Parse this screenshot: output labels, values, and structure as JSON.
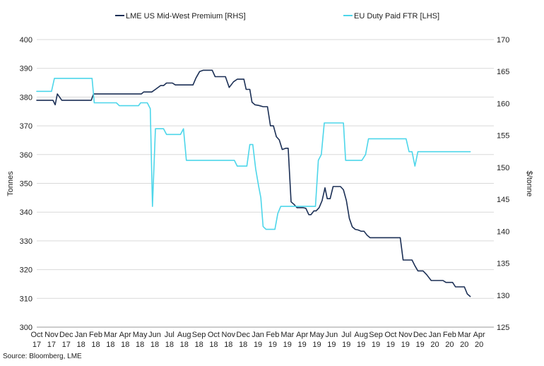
{
  "chart_data": {
    "type": "line",
    "legend": [
      {
        "name": "LME US Mid-West Premium [RHS]",
        "color": "#1b2f55",
        "axis": "right"
      },
      {
        "name": "EU Duty Paid FTR [LHS]",
        "color": "#4dd6ea",
        "axis": "left"
      }
    ],
    "legend_placement": "top",
    "left_axis": {
      "label": "Tonnes",
      "range": [
        300,
        400
      ],
      "ticks": [
        "300",
        "310",
        "320",
        "330",
        "340",
        "350",
        "360",
        "370",
        "380",
        "390",
        "400"
      ]
    },
    "right_axis": {
      "label": "$/tonne",
      "range": [
        125,
        170
      ],
      "ticks": [
        "125",
        "130",
        "135",
        "140",
        "145",
        "150",
        "155",
        "160",
        "165",
        "170"
      ]
    },
    "x_axis": {
      "range": [
        0,
        31
      ],
      "ticks": [
        {
          "month": "Oct",
          "year": "17"
        },
        {
          "month": "Nov",
          "year": "17"
        },
        {
          "month": "Dec",
          "year": "17"
        },
        {
          "month": "Jan",
          "year": "18"
        },
        {
          "month": "Feb",
          "year": "18"
        },
        {
          "month": "Mar",
          "year": "18"
        },
        {
          "month": "Apr",
          "year": "18"
        },
        {
          "month": "May",
          "year": "18"
        },
        {
          "month": "Jun",
          "year": "18"
        },
        {
          "month": "Jul",
          "year": "18"
        },
        {
          "month": "Aug",
          "year": "18"
        },
        {
          "month": "Sep",
          "year": "18"
        },
        {
          "month": "Oct",
          "year": "18"
        },
        {
          "month": "Nov",
          "year": "18"
        },
        {
          "month": "Dec",
          "year": "18"
        },
        {
          "month": "Jan",
          "year": "19"
        },
        {
          "month": "Feb",
          "year": "19"
        },
        {
          "month": "Mar",
          "year": "19"
        },
        {
          "month": "Apr",
          "year": "19"
        },
        {
          "month": "May",
          "year": "19"
        },
        {
          "month": "Jun",
          "year": "19"
        },
        {
          "month": "Jul",
          "year": "19"
        },
        {
          "month": "Aug",
          "year": "19"
        },
        {
          "month": "Sep",
          "year": "19"
        },
        {
          "month": "Oct",
          "year": "19"
        },
        {
          "month": "Nov",
          "year": "19"
        },
        {
          "month": "Dec",
          "year": "19"
        },
        {
          "month": "Jan",
          "year": "20"
        },
        {
          "month": "Feb",
          "year": "20"
        },
        {
          "month": "Mar",
          "year": "20"
        },
        {
          "month": "Apr",
          "year": "20"
        }
      ]
    },
    "grid": "horizontal",
    "series": [
      {
        "name": "LME US Mid-West Premium [RHS]",
        "axis": "right",
        "color": "#1b2f55",
        "points": [
          [
            0,
            160.5
          ],
          [
            1.1,
            160.5
          ],
          [
            1.25,
            159.8
          ],
          [
            1.4,
            161.5
          ],
          [
            1.7,
            160.5
          ],
          [
            3.7,
            160.5
          ],
          [
            3.85,
            161.5
          ],
          [
            7.1,
            161.5
          ],
          [
            7.25,
            161.8
          ],
          [
            7.8,
            161.8
          ],
          [
            8.05,
            162.2
          ],
          [
            8.4,
            162.8
          ],
          [
            8.6,
            162.8
          ],
          [
            8.8,
            163.2
          ],
          [
            9.2,
            163.2
          ],
          [
            9.4,
            162.9
          ],
          [
            10.6,
            162.9
          ],
          [
            10.8,
            164
          ],
          [
            11.05,
            165
          ],
          [
            11.3,
            165.2
          ],
          [
            11.9,
            165.2
          ],
          [
            12.1,
            164.2
          ],
          [
            12.8,
            164.2
          ],
          [
            13.05,
            162.5
          ],
          [
            13.35,
            163.4
          ],
          [
            13.6,
            163.8
          ],
          [
            14.05,
            163.8
          ],
          [
            14.2,
            162.2
          ],
          [
            14.45,
            162.2
          ],
          [
            14.6,
            160.2
          ],
          [
            14.8,
            159.8
          ],
          [
            15.05,
            159.7
          ],
          [
            15.35,
            159.5
          ],
          [
            15.65,
            159.5
          ],
          [
            15.85,
            156.5
          ],
          [
            16.05,
            156.5
          ],
          [
            16.25,
            154.8
          ],
          [
            16.45,
            154.3
          ],
          [
            16.65,
            152.8
          ],
          [
            16.9,
            153.0
          ],
          [
            17.05,
            153.0
          ],
          [
            17.25,
            144.6
          ],
          [
            17.45,
            144.2
          ],
          [
            17.65,
            143.7
          ],
          [
            18.05,
            143.7
          ],
          [
            18.25,
            143.6
          ],
          [
            18.45,
            142.6
          ],
          [
            18.6,
            142.6
          ],
          [
            18.8,
            143.2
          ],
          [
            18.95,
            143.2
          ],
          [
            19.15,
            143.7
          ],
          [
            19.35,
            144.8
          ],
          [
            19.55,
            146.8
          ],
          [
            19.7,
            145.1
          ],
          [
            19.9,
            145.1
          ],
          [
            20.1,
            147
          ],
          [
            20.6,
            147
          ],
          [
            20.8,
            146.5
          ],
          [
            21.0,
            144.8
          ],
          [
            21.2,
            142.0
          ],
          [
            21.4,
            140.7
          ],
          [
            21.6,
            140.3
          ],
          [
            21.8,
            140.2
          ],
          [
            22.0,
            140
          ],
          [
            22.2,
            140
          ],
          [
            22.4,
            139.4
          ],
          [
            22.6,
            139.0
          ],
          [
            24.65,
            139.0
          ],
          [
            24.85,
            135.5
          ],
          [
            25.45,
            135.5
          ],
          [
            25.65,
            134.6
          ],
          [
            25.85,
            133.8
          ],
          [
            26.2,
            133.8
          ],
          [
            26.45,
            133.2
          ],
          [
            26.75,
            132.3
          ],
          [
            27.55,
            132.3
          ],
          [
            27.75,
            132.0
          ],
          [
            28.2,
            132.0
          ],
          [
            28.4,
            131.3
          ],
          [
            29.0,
            131.3
          ],
          [
            29.2,
            130.2
          ],
          [
            29.4,
            129.8
          ]
        ]
      },
      {
        "name": "EU Duty Paid FTR [LHS]",
        "axis": "left",
        "color": "#4dd6ea",
        "points": [
          [
            0,
            382
          ],
          [
            1.0,
            382
          ],
          [
            1.2,
            386.5
          ],
          [
            3.75,
            386.5
          ],
          [
            3.9,
            378
          ],
          [
            5.4,
            378
          ],
          [
            5.6,
            377
          ],
          [
            6.9,
            377
          ],
          [
            7.05,
            378
          ],
          [
            7.5,
            378
          ],
          [
            7.7,
            376
          ],
          [
            7.85,
            342
          ],
          [
            8.05,
            369
          ],
          [
            8.6,
            369
          ],
          [
            8.8,
            367
          ],
          [
            9.75,
            367
          ],
          [
            9.95,
            369
          ],
          [
            10.15,
            358
          ],
          [
            13.4,
            358
          ],
          [
            13.6,
            356
          ],
          [
            14.25,
            356
          ],
          [
            14.45,
            363.5
          ],
          [
            14.65,
            363.5
          ],
          [
            14.85,
            355
          ],
          [
            15.05,
            349
          ],
          [
            15.2,
            345
          ],
          [
            15.35,
            335
          ],
          [
            15.55,
            334
          ],
          [
            16.15,
            334
          ],
          [
            16.35,
            339.5
          ],
          [
            16.55,
            342
          ],
          [
            18.9,
            342
          ],
          [
            19.1,
            358
          ],
          [
            19.3,
            360
          ],
          [
            19.5,
            371
          ],
          [
            20.8,
            371
          ],
          [
            20.95,
            358
          ],
          [
            22.05,
            358
          ],
          [
            22.3,
            360
          ],
          [
            22.5,
            365.5
          ],
          [
            25.05,
            365.5
          ],
          [
            25.25,
            361
          ],
          [
            25.45,
            361
          ],
          [
            25.65,
            356
          ],
          [
            25.85,
            361
          ],
          [
            29.4,
            361
          ]
        ]
      }
    ]
  },
  "source": "Source: Bloomberg, LME"
}
